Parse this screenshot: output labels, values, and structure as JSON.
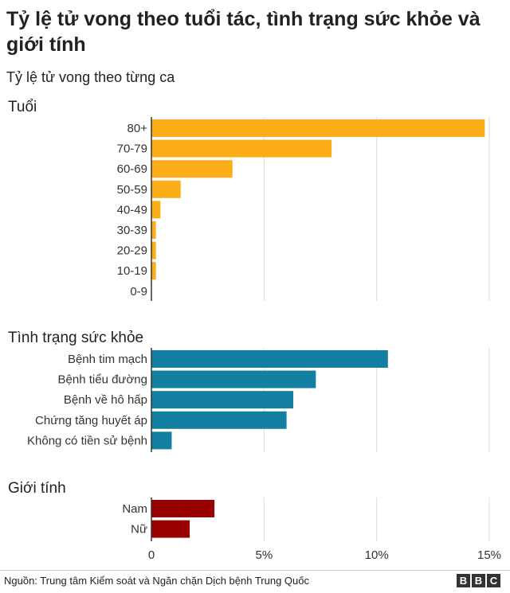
{
  "title": "Tỷ lệ tử vong theo tuổi tác, tình trạng sức khỏe và giới tính",
  "subtitle": "Tỷ lệ tử vong theo từng ca",
  "source": "Nguồn: Trung tâm Kiểm soát và Ngăn chặn Dịch bệnh Trung Quốc",
  "logo_letters": [
    "B",
    "B",
    "C"
  ],
  "chart_data": {
    "type": "bar",
    "orientation": "horizontal",
    "x_ticks": [
      0,
      5,
      10,
      15
    ],
    "x_tick_labels": [
      "0",
      "5%",
      "10%",
      "15%"
    ],
    "xlim": [
      0,
      15
    ],
    "grid": true,
    "groups": [
      {
        "label": "Tuổi",
        "color": "#fbae17",
        "categories": [
          "80+",
          "70-79",
          "60-69",
          "50-59",
          "40-49",
          "30-39",
          "20-29",
          "10-19",
          "0-9"
        ],
        "values": [
          14.8,
          8.0,
          3.6,
          1.3,
          0.4,
          0.2,
          0.2,
          0.2,
          0
        ]
      },
      {
        "label": "Tình trạng sức khỏe",
        "color": "#1380a1",
        "categories": [
          "Bệnh tim mạch",
          "Bệnh tiểu đường",
          "Bệnh về hô hấp",
          "Chứng tăng huyết áp",
          "Không có tiền sử bệnh"
        ],
        "values": [
          10.5,
          7.3,
          6.3,
          6.0,
          0.9
        ]
      },
      {
        "label": "Giới tính",
        "color": "#990000",
        "categories": [
          "Nam",
          "Nữ"
        ],
        "values": [
          2.8,
          1.7
        ]
      }
    ]
  }
}
